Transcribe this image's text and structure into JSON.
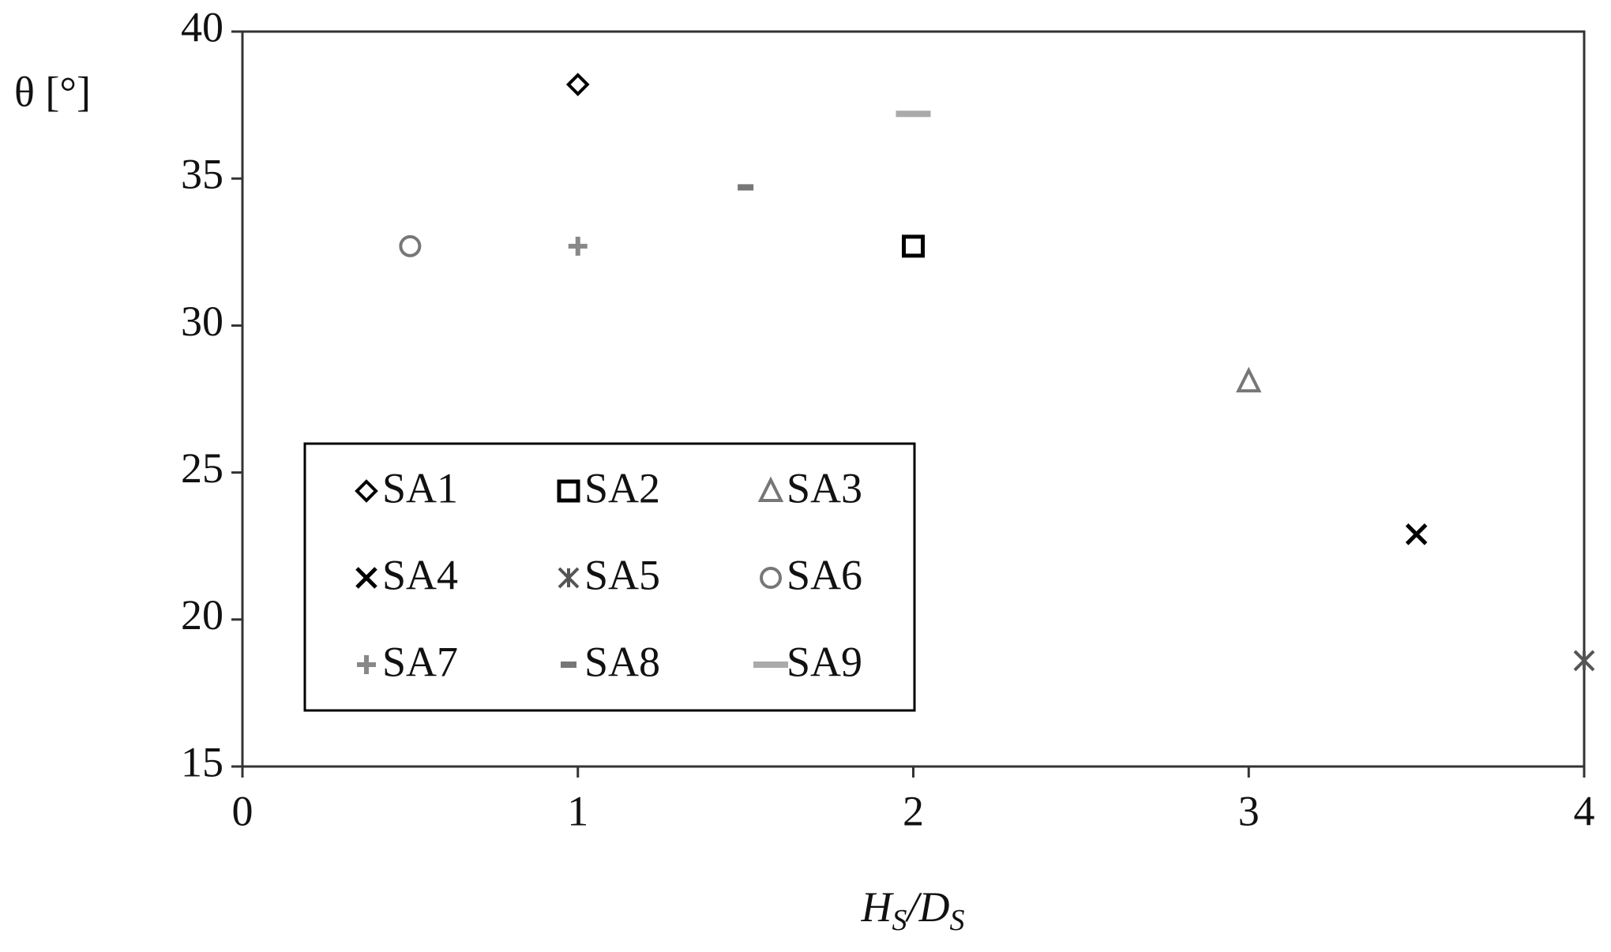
{
  "chart_data": {
    "type": "scatter",
    "ylabel": "θ [°]",
    "xlabel_parts": [
      "H",
      "S",
      "/D",
      "S"
    ],
    "xlim": [
      0,
      4
    ],
    "xticks": [
      0,
      1,
      2,
      3,
      4
    ],
    "ylim": [
      15,
      40
    ],
    "yticks": [
      15,
      20,
      25,
      30,
      35,
      40
    ],
    "grid": false,
    "legend": "lower left",
    "series": [
      {
        "name": "SA1",
        "marker": "diamond",
        "color": "#000000",
        "x": [
          1
        ],
        "values": [
          38.2
        ]
      },
      {
        "name": "SA2",
        "marker": "square",
        "color": "#000000",
        "x": [
          2
        ],
        "values": [
          32.7
        ]
      },
      {
        "name": "SA3",
        "marker": "triangle",
        "color": "#777777",
        "x": [
          3
        ],
        "values": [
          28.1
        ]
      },
      {
        "name": "SA4",
        "marker": "x",
        "color": "#000000",
        "x": [
          3.5
        ],
        "values": [
          22.9
        ]
      },
      {
        "name": "SA5",
        "marker": "asterisk",
        "color": "#555555",
        "x": [
          4
        ],
        "values": [
          18.6
        ]
      },
      {
        "name": "SA6",
        "marker": "circle",
        "color": "#777777",
        "x": [
          0.5
        ],
        "values": [
          32.7
        ]
      },
      {
        "name": "SA7",
        "marker": "plus",
        "color": "#888888",
        "x": [
          1
        ],
        "values": [
          32.7
        ]
      },
      {
        "name": "SA8",
        "marker": "short-dash",
        "color": "#777777",
        "x": [
          1.5
        ],
        "values": [
          34.7
        ]
      },
      {
        "name": "SA9",
        "marker": "long-dash",
        "color": "#aaaaaa",
        "x": [
          2
        ],
        "values": [
          37.2
        ]
      }
    ]
  }
}
